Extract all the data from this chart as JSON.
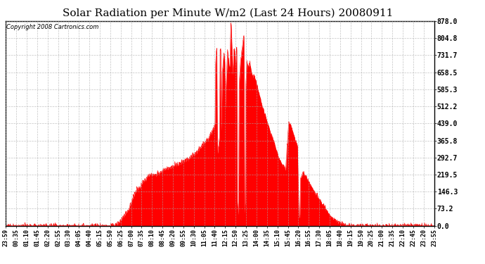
{
  "title": "Solar Radiation per Minute W/m2 (Last 24 Hours) 20080911",
  "copyright": "Copyright 2008 Cartronics.com",
  "background_color": "#ffffff",
  "plot_bg_color": "#ffffff",
  "line_color": "#ff0000",
  "fill_color": "#ff0000",
  "grid_color": "#aaaaaa",
  "y_ticks": [
    0.0,
    73.2,
    146.3,
    219.5,
    292.7,
    365.8,
    439.0,
    512.2,
    585.3,
    658.5,
    731.7,
    804.8,
    878.0
  ],
  "y_min": 0.0,
  "y_max": 878.0,
  "x_labels": [
    "23:59",
    "00:35",
    "01:10",
    "01:45",
    "02:20",
    "02:55",
    "03:30",
    "04:05",
    "04:40",
    "05:15",
    "05:50",
    "06:25",
    "07:00",
    "07:35",
    "08:10",
    "08:45",
    "09:20",
    "09:55",
    "10:30",
    "11:05",
    "11:40",
    "12:15",
    "12:50",
    "13:25",
    "14:00",
    "14:35",
    "15:10",
    "15:45",
    "16:20",
    "16:55",
    "17:30",
    "18:05",
    "18:40",
    "19:15",
    "19:50",
    "20:25",
    "21:00",
    "21:35",
    "22:10",
    "22:45",
    "23:20",
    "23:55"
  ],
  "title_fontsize": 11,
  "copyright_fontsize": 6,
  "tick_label_fontsize": 6,
  "y_tick_fontsize": 7,
  "border_color": "#000000"
}
